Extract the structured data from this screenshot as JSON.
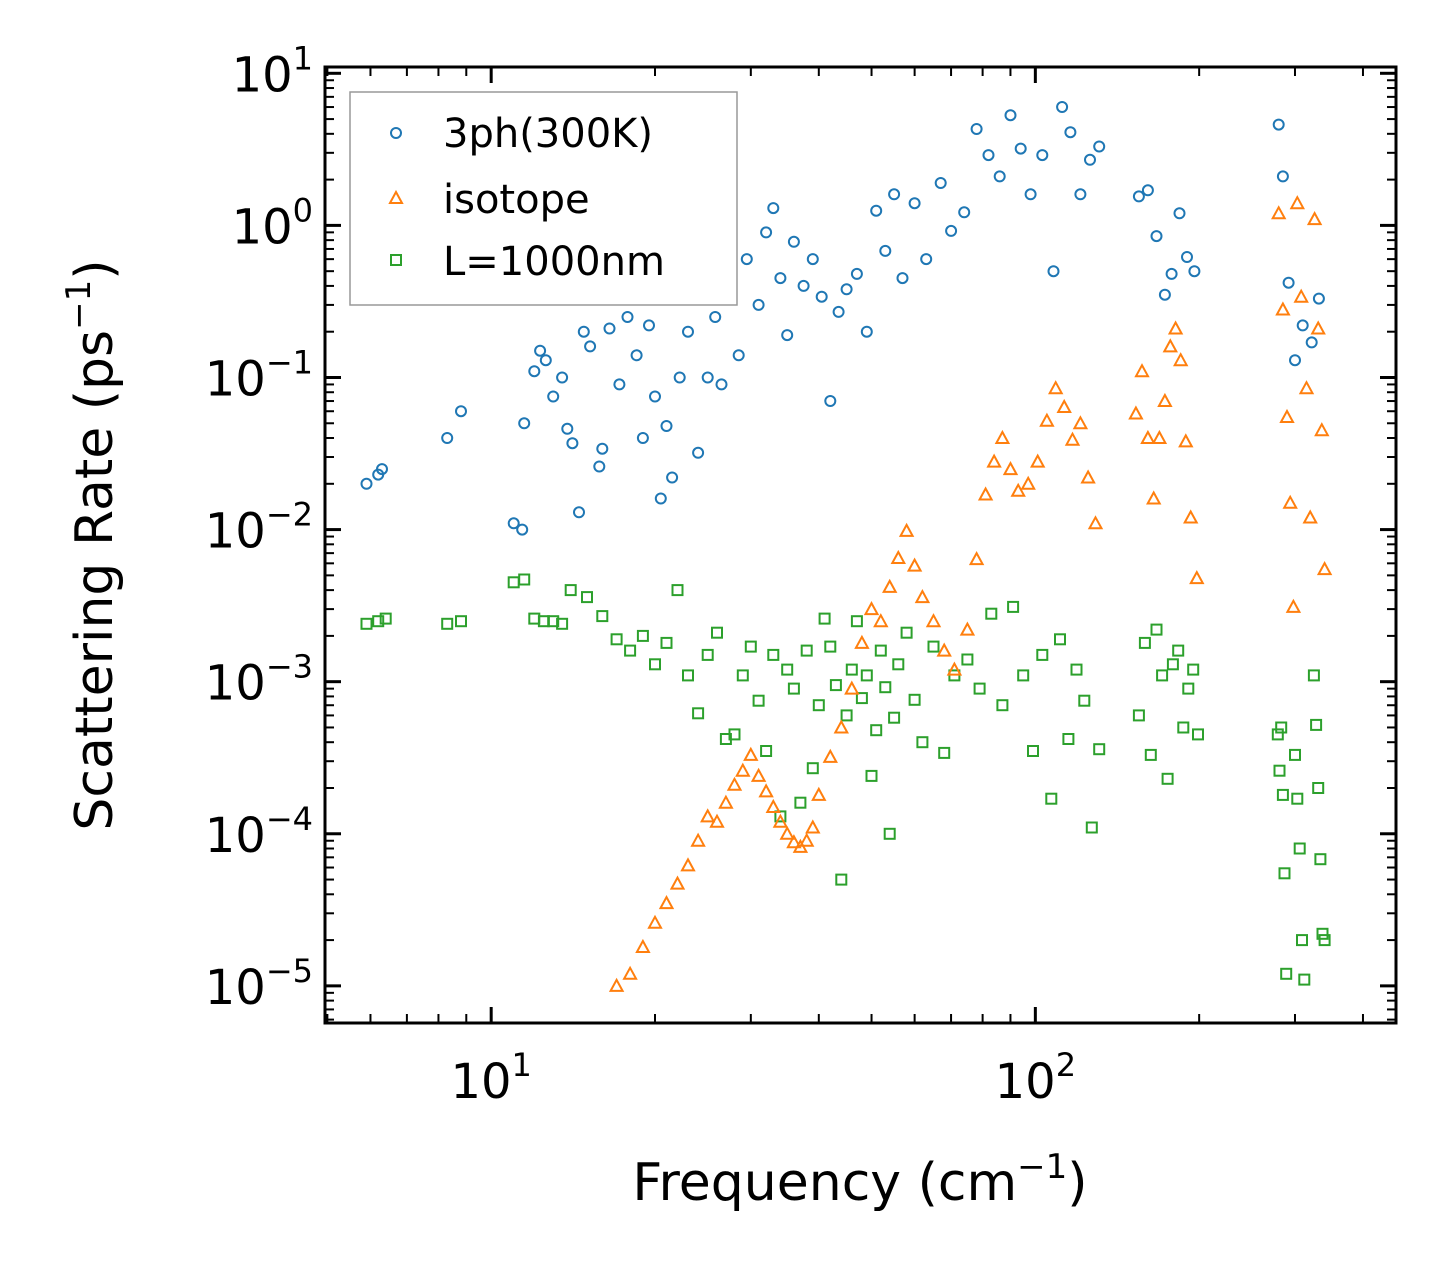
{
  "chart_data": {
    "type": "scatter",
    "xscale": "log",
    "yscale": "log",
    "xlim": [
      4.95,
      460
    ],
    "ylim": [
      5.7e-06,
      11
    ],
    "xlabel": "Frequency",
    "xlabel_unit": "cm",
    "xlabel_unit_exp": "−1",
    "ylabel": "Scattering Rate",
    "ylabel_unit": "ps",
    "ylabel_unit_exp": "−1",
    "x_ticks": [
      {
        "value": 10,
        "base": "10",
        "exp": "1"
      },
      {
        "value": 100,
        "base": "10",
        "exp": "2"
      }
    ],
    "y_ticks": [
      {
        "value": 10,
        "base": "10",
        "exp": "1"
      },
      {
        "value": 1,
        "base": "10",
        "exp": "0"
      },
      {
        "value": 0.1,
        "base": "10",
        "exp": "−1"
      },
      {
        "value": 0.01,
        "base": "10",
        "exp": "−2"
      },
      {
        "value": 0.001,
        "base": "10",
        "exp": "−3"
      },
      {
        "value": 0.0001,
        "base": "10",
        "exp": "−4"
      },
      {
        "value": 1e-05,
        "base": "10",
        "exp": "−5"
      }
    ],
    "legend_position": "top-left",
    "series": [
      {
        "name": "3ph(300K)",
        "marker": "circle",
        "color": "#1f77b4",
        "points": [
          [
            5.9,
            0.02
          ],
          [
            6.2,
            0.023
          ],
          [
            6.3,
            0.025
          ],
          [
            8.3,
            0.04
          ],
          [
            8.8,
            0.06
          ],
          [
            11,
            0.011
          ],
          [
            11.4,
            0.01
          ],
          [
            11.5,
            0.05
          ],
          [
            12,
            0.11
          ],
          [
            12.3,
            0.15
          ],
          [
            12.6,
            0.13
          ],
          [
            13,
            0.075
          ],
          [
            13.5,
            0.1
          ],
          [
            13.8,
            0.046
          ],
          [
            14.1,
            0.037
          ],
          [
            14.5,
            0.013
          ],
          [
            14.8,
            0.2
          ],
          [
            15.2,
            0.16
          ],
          [
            15.8,
            0.026
          ],
          [
            16,
            0.034
          ],
          [
            16.5,
            0.21
          ],
          [
            17.2,
            0.09
          ],
          [
            17.8,
            0.25
          ],
          [
            18.5,
            0.14
          ],
          [
            19,
            0.04
          ],
          [
            19.5,
            0.22
          ],
          [
            20,
            0.075
          ],
          [
            20.5,
            0.016
          ],
          [
            21,
            0.048
          ],
          [
            21.5,
            0.022
          ],
          [
            22.2,
            0.1
          ],
          [
            23,
            0.2
          ],
          [
            24,
            0.032
          ],
          [
            25,
            0.1
          ],
          [
            25.8,
            0.25
          ],
          [
            26.5,
            0.09
          ],
          [
            27.5,
            0.4
          ],
          [
            28.5,
            0.14
          ],
          [
            29.5,
            0.6
          ],
          [
            31,
            0.3
          ],
          [
            32,
            0.9
          ],
          [
            33,
            1.3
          ],
          [
            34,
            0.45
          ],
          [
            35,
            0.19
          ],
          [
            36,
            0.78
          ],
          [
            37.5,
            0.4
          ],
          [
            39,
            0.6
          ],
          [
            40.5,
            0.34
          ],
          [
            42,
            0.07
          ],
          [
            43.5,
            0.27
          ],
          [
            45,
            0.38
          ],
          [
            47,
            0.48
          ],
          [
            49,
            0.2
          ],
          [
            51,
            1.25
          ],
          [
            53,
            0.68
          ],
          [
            55,
            1.6
          ],
          [
            57,
            0.45
          ],
          [
            60,
            1.4
          ],
          [
            63,
            0.6
          ],
          [
            67,
            1.9
          ],
          [
            70,
            0.92
          ],
          [
            74,
            1.22
          ],
          [
            78,
            4.3
          ],
          [
            82,
            2.9
          ],
          [
            86,
            2.1
          ],
          [
            90,
            5.3
          ],
          [
            94,
            3.2
          ],
          [
            98,
            1.6
          ],
          [
            103,
            2.9
          ],
          [
            108,
            0.5
          ],
          [
            112,
            6.0
          ],
          [
            116,
            4.1
          ],
          [
            121,
            1.6
          ],
          [
            126,
            2.7
          ],
          [
            131,
            3.3
          ],
          [
            155,
            1.55
          ],
          [
            161,
            1.7
          ],
          [
            167,
            0.85
          ],
          [
            173,
            0.35
          ],
          [
            178,
            0.48
          ],
          [
            184,
            1.2
          ],
          [
            190,
            0.62
          ],
          [
            196,
            0.5
          ],
          [
            280,
            4.6
          ],
          [
            285,
            2.1
          ],
          [
            292,
            0.42
          ],
          [
            300,
            0.13
          ],
          [
            310,
            0.22
          ],
          [
            322,
            0.17
          ],
          [
            332,
            0.33
          ]
        ]
      },
      {
        "name": "isotope",
        "marker": "triangle",
        "color": "#ff7f0e",
        "points": [
          [
            17,
            1e-05
          ],
          [
            18,
            1.2e-05
          ],
          [
            19,
            1.8e-05
          ],
          [
            20,
            2.6e-05
          ],
          [
            21,
            3.5e-05
          ],
          [
            22,
            4.7e-05
          ],
          [
            23,
            6.2e-05
          ],
          [
            24,
            9e-05
          ],
          [
            25,
            0.00013
          ],
          [
            26,
            0.00012
          ],
          [
            27,
            0.00016
          ],
          [
            28,
            0.00021
          ],
          [
            29,
            0.00026
          ],
          [
            30,
            0.00033
          ],
          [
            31,
            0.00024
          ],
          [
            32,
            0.00019
          ],
          [
            33,
            0.00015
          ],
          [
            34,
            0.00012
          ],
          [
            35,
            0.0001
          ],
          [
            36,
            8.8e-05
          ],
          [
            37,
            8.2e-05
          ],
          [
            38,
            9e-05
          ],
          [
            39,
            0.00011
          ],
          [
            40,
            0.00018
          ],
          [
            42,
            0.00032
          ],
          [
            44,
            0.0005
          ],
          [
            46,
            0.0009
          ],
          [
            48,
            0.0018
          ],
          [
            50,
            0.003
          ],
          [
            52,
            0.0025
          ],
          [
            54,
            0.0042
          ],
          [
            56,
            0.0065
          ],
          [
            58,
            0.0098
          ],
          [
            60,
            0.0058
          ],
          [
            62,
            0.0036
          ],
          [
            65,
            0.0025
          ],
          [
            68,
            0.0016
          ],
          [
            71,
            0.0012
          ],
          [
            75,
            0.0022
          ],
          [
            78,
            0.0064
          ],
          [
            81,
            0.017
          ],
          [
            84,
            0.028
          ],
          [
            87,
            0.04
          ],
          [
            90,
            0.025
          ],
          [
            93,
            0.018
          ],
          [
            97,
            0.02
          ],
          [
            101,
            0.028
          ],
          [
            105,
            0.052
          ],
          [
            109,
            0.085
          ],
          [
            113,
            0.064
          ],
          [
            117,
            0.039
          ],
          [
            121,
            0.05
          ],
          [
            125,
            0.022
          ],
          [
            129,
            0.011
          ],
          [
            153,
            0.058
          ],
          [
            157,
            0.11
          ],
          [
            161,
            0.04
          ],
          [
            165,
            0.016
          ],
          [
            169,
            0.04
          ],
          [
            173,
            0.07
          ],
          [
            177,
            0.16
          ],
          [
            181,
            0.21
          ],
          [
            185,
            0.13
          ],
          [
            189,
            0.038
          ],
          [
            193,
            0.012
          ],
          [
            198,
            0.0048
          ],
          [
            280,
            1.2
          ],
          [
            285,
            0.28
          ],
          [
            290,
            0.055
          ],
          [
            294,
            0.015
          ],
          [
            298,
            0.0031
          ],
          [
            303,
            1.4
          ],
          [
            308,
            0.34
          ],
          [
            315,
            0.085
          ],
          [
            320,
            0.012
          ],
          [
            326,
            1.1
          ],
          [
            331,
            0.21
          ],
          [
            336,
            0.045
          ],
          [
            340,
            0.0055
          ]
        ]
      },
      {
        "name": "L=1000nm",
        "marker": "square",
        "color": "#2ca02c",
        "points": [
          [
            5.9,
            0.0024
          ],
          [
            6.2,
            0.0025
          ],
          [
            6.4,
            0.0026
          ],
          [
            8.3,
            0.0024
          ],
          [
            8.8,
            0.0025
          ],
          [
            11,
            0.0045
          ],
          [
            11.5,
            0.0047
          ],
          [
            12,
            0.0026
          ],
          [
            12.5,
            0.0025
          ],
          [
            13,
            0.0025
          ],
          [
            13.5,
            0.0024
          ],
          [
            14,
            0.004
          ],
          [
            15,
            0.0036
          ],
          [
            16,
            0.0027
          ],
          [
            17,
            0.0019
          ],
          [
            18,
            0.0016
          ],
          [
            19,
            0.002
          ],
          [
            20,
            0.0013
          ],
          [
            21,
            0.0018
          ],
          [
            22,
            0.004
          ],
          [
            23,
            0.0011
          ],
          [
            24,
            0.00062
          ],
          [
            25,
            0.0015
          ],
          [
            26,
            0.0021
          ],
          [
            27,
            0.00042
          ],
          [
            28,
            0.00045
          ],
          [
            29,
            0.0011
          ],
          [
            30,
            0.0017
          ],
          [
            31,
            0.00075
          ],
          [
            32,
            0.00035
          ],
          [
            33,
            0.0015
          ],
          [
            34,
            0.00013
          ],
          [
            35,
            0.0012
          ],
          [
            36,
            0.0009
          ],
          [
            37,
            0.00016
          ],
          [
            38,
            0.0016
          ],
          [
            39,
            0.00027
          ],
          [
            40,
            0.0007
          ],
          [
            41,
            0.0026
          ],
          [
            42,
            0.0017
          ],
          [
            43,
            0.00095
          ],
          [
            44,
            5e-05
          ],
          [
            45,
            0.0006
          ],
          [
            46,
            0.0012
          ],
          [
            47,
            0.0025
          ],
          [
            48,
            0.00078
          ],
          [
            49,
            0.0011
          ],
          [
            50,
            0.00024
          ],
          [
            51,
            0.00048
          ],
          [
            52,
            0.0016
          ],
          [
            53,
            0.00092
          ],
          [
            54,
            0.0001
          ],
          [
            55,
            0.00058
          ],
          [
            56,
            0.0013
          ],
          [
            58,
            0.0021
          ],
          [
            60,
            0.00076
          ],
          [
            62,
            0.0004
          ],
          [
            65,
            0.0017
          ],
          [
            68,
            0.00034
          ],
          [
            71,
            0.0011
          ],
          [
            75,
            0.0014
          ],
          [
            79,
            0.0009
          ],
          [
            83,
            0.0028
          ],
          [
            87,
            0.0007
          ],
          [
            91,
            0.0031
          ],
          [
            95,
            0.0011
          ],
          [
            99,
            0.00035
          ],
          [
            103,
            0.0015
          ],
          [
            107,
            0.00017
          ],
          [
            111,
            0.0019
          ],
          [
            115,
            0.00042
          ],
          [
            119,
            0.0012
          ],
          [
            123,
            0.00075
          ],
          [
            127,
            0.00011
          ],
          [
            131,
            0.00036
          ],
          [
            155,
            0.0006
          ],
          [
            159,
            0.0018
          ],
          [
            163,
            0.00033
          ],
          [
            167,
            0.0022
          ],
          [
            171,
            0.0011
          ],
          [
            175,
            0.00023
          ],
          [
            179,
            0.0013
          ],
          [
            183,
            0.0016
          ],
          [
            187,
            0.0005
          ],
          [
            191,
            0.0009
          ],
          [
            195,
            0.0012
          ],
          [
            199,
            0.00045
          ],
          [
            279,
            0.00045
          ],
          [
            281,
            0.00026
          ],
          [
            283,
            0.0005
          ],
          [
            285,
            0.00018
          ],
          [
            287,
            5.5e-05
          ],
          [
            289,
            1.2e-05
          ],
          [
            300,
            0.00033
          ],
          [
            303,
            0.00017
          ],
          [
            306,
            8e-05
          ],
          [
            309,
            2e-05
          ],
          [
            312,
            1.1e-05
          ],
          [
            325,
            0.0011
          ],
          [
            328,
            0.00052
          ],
          [
            331,
            0.0002
          ],
          [
            334,
            6.8e-05
          ],
          [
            337,
            2.2e-05
          ],
          [
            340,
            2e-05
          ]
        ]
      }
    ]
  }
}
